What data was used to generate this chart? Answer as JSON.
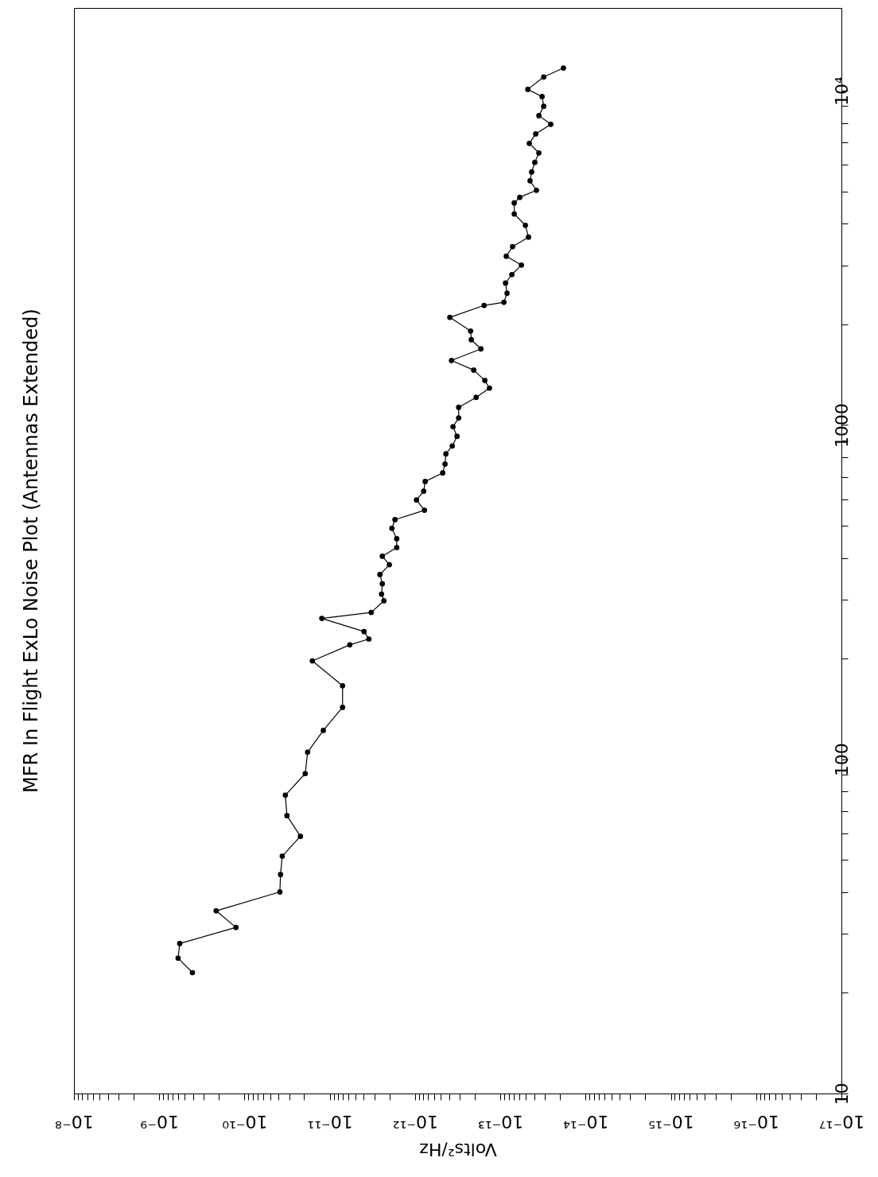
{
  "chart_data": {
    "type": "line",
    "title": "MFR In Flight ExLo Noise Plot (Antennas Extended)",
    "xlabel": "Volts²/Hz",
    "log": "xy",
    "grid": false,
    "marker": "circle",
    "line_style": "solid",
    "xlim": [
      1e-08,
      1e-17
    ],
    "ylim": [
      10,
      17700
    ],
    "xticks": [
      {
        "value": 1e-08,
        "label": "10⁻⁸"
      },
      {
        "value": 1e-09,
        "label": "10⁻⁹"
      },
      {
        "value": 1e-10,
        "label": "10⁻¹⁰"
      },
      {
        "value": 1e-11,
        "label": "10⁻¹¹"
      },
      {
        "value": 1e-12,
        "label": "10⁻¹²"
      },
      {
        "value": 1e-13,
        "label": "10⁻¹³"
      },
      {
        "value": 1e-14,
        "label": "10⁻¹⁴"
      },
      {
        "value": 1e-15,
        "label": "10⁻¹⁵"
      },
      {
        "value": 1e-16,
        "label": "10⁻¹⁶"
      },
      {
        "value": 1e-17,
        "label": "10⁻¹⁷"
      },
      {
        "value": 9e-09,
        "label": null
      },
      {
        "value": 8e-09,
        "label": null
      },
      {
        "value": 7e-09,
        "label": null
      },
      {
        "value": 6e-09,
        "label": null
      },
      {
        "value": 5e-09,
        "label": null
      },
      {
        "value": 4e-09,
        "label": null
      },
      {
        "value": 3e-09,
        "label": null
      },
      {
        "value": 2e-09,
        "label": null
      },
      {
        "value": 9e-10,
        "label": null
      },
      {
        "value": 8e-10,
        "label": null
      },
      {
        "value": 7e-10,
        "label": null
      },
      {
        "value": 6e-10,
        "label": null
      },
      {
        "value": 5e-10,
        "label": null
      },
      {
        "value": 4e-10,
        "label": null
      },
      {
        "value": 3e-10,
        "label": null
      },
      {
        "value": 2e-10,
        "label": null
      },
      {
        "value": 9e-11,
        "label": null
      },
      {
        "value": 8e-11,
        "label": null
      },
      {
        "value": 7e-11,
        "label": null
      },
      {
        "value": 6e-11,
        "label": null
      },
      {
        "value": 5e-11,
        "label": null
      },
      {
        "value": 4e-11,
        "label": null
      },
      {
        "value": 3e-11,
        "label": null
      },
      {
        "value": 2e-11,
        "label": null
      },
      {
        "value": 9e-12,
        "label": null
      },
      {
        "value": 8e-12,
        "label": null
      },
      {
        "value": 7e-12,
        "label": null
      },
      {
        "value": 6e-12,
        "label": null
      },
      {
        "value": 5e-12,
        "label": null
      },
      {
        "value": 4e-12,
        "label": null
      },
      {
        "value": 3e-12,
        "label": null
      },
      {
        "value": 2e-12,
        "label": null
      },
      {
        "value": 9e-13,
        "label": null
      },
      {
        "value": 8e-13,
        "label": null
      },
      {
        "value": 7e-13,
        "label": null
      },
      {
        "value": 6e-13,
        "label": null
      },
      {
        "value": 5e-13,
        "label": null
      },
      {
        "value": 4e-13,
        "label": null
      },
      {
        "value": 3e-13,
        "label": null
      },
      {
        "value": 2e-13,
        "label": null
      },
      {
        "value": 9e-14,
        "label": null
      },
      {
        "value": 8e-14,
        "label": null
      },
      {
        "value": 7e-14,
        "label": null
      },
      {
        "value": 6e-14,
        "label": null
      },
      {
        "value": 5e-14,
        "label": null
      },
      {
        "value": 4e-14,
        "label": null
      },
      {
        "value": 3e-14,
        "label": null
      },
      {
        "value": 2e-14,
        "label": null
      },
      {
        "value": 9e-15,
        "label": null
      },
      {
        "value": 8e-15,
        "label": null
      },
      {
        "value": 7e-15,
        "label": null
      },
      {
        "value": 6e-15,
        "label": null
      },
      {
        "value": 5e-15,
        "label": null
      },
      {
        "value": 4e-15,
        "label": null
      },
      {
        "value": 3e-15,
        "label": null
      },
      {
        "value": 2e-15,
        "label": null
      },
      {
        "value": 9e-16,
        "label": null
      },
      {
        "value": 8e-16,
        "label": null
      },
      {
        "value": 7e-16,
        "label": null
      },
      {
        "value": 6e-16,
        "label": null
      },
      {
        "value": 5e-16,
        "label": null
      },
      {
        "value": 4e-16,
        "label": null
      },
      {
        "value": 3e-16,
        "label": null
      },
      {
        "value": 2e-16,
        "label": null
      },
      {
        "value": 9e-17,
        "label": null
      },
      {
        "value": 8e-17,
        "label": null
      },
      {
        "value": 7e-17,
        "label": null
      },
      {
        "value": 6e-17,
        "label": null
      },
      {
        "value": 5e-17,
        "label": null
      },
      {
        "value": 4e-17,
        "label": null
      },
      {
        "value": 3e-17,
        "label": null
      },
      {
        "value": 2e-17,
        "label": null
      }
    ],
    "yticks": [
      10,
      100,
      1000,
      {
        "value": 10000,
        "label": "10⁴"
      },
      {
        "value": 20,
        "label": null
      },
      {
        "value": 30,
        "label": null
      },
      {
        "value": 40,
        "label": null
      },
      {
        "value": 50,
        "label": null
      },
      {
        "value": 60,
        "label": null
      },
      {
        "value": 70,
        "label": null
      },
      {
        "value": 80,
        "label": null
      },
      {
        "value": 90,
        "label": null
      },
      {
        "value": 200,
        "label": null
      },
      {
        "value": 300,
        "label": null
      },
      {
        "value": 400,
        "label": null
      },
      {
        "value": 500,
        "label": null
      },
      {
        "value": 600,
        "label": null
      },
      {
        "value": 700,
        "label": null
      },
      {
        "value": 800,
        "label": null
      },
      {
        "value": 900,
        "label": null
      },
      {
        "value": 2000,
        "label": null
      },
      {
        "value": 3000,
        "label": null
      },
      {
        "value": 4000,
        "label": null
      },
      {
        "value": 5000,
        "label": null
      },
      {
        "value": 6000,
        "label": null
      },
      {
        "value": 7000,
        "label": null
      },
      {
        "value": 8000,
        "label": null
      },
      {
        "value": 9000,
        "label": null
      }
    ],
    "series": [
      {
        "color": "#000000",
        "x": [
          1.82e-14,
          3.1e-14,
          4.76e-14,
          3.24e-14,
          3.1e-14,
          3.53e-14,
          2.56e-14,
          3.85e-14,
          4.57e-14,
          3.53e-14,
          3.94e-14,
          4.29e-14,
          4.48e-14,
          3.77e-14,
          5.92e-14,
          6.87e-14,
          6.87e-14,
          5.08e-14,
          4.67e-14,
          7.18e-14,
          8.51e-14,
          5.66e-14,
          7.33e-14,
          8.69e-14,
          8.34e-14,
          9.08e-14,
          1.55e-13,
          3.91e-13,
          2.23e-13,
          2.19e-13,
          1.69e-13,
          3.74e-13,
          2.05e-13,
          1.52e-13,
          1.34e-13,
          1.92e-13,
          3.08e-13,
          3.08e-13,
          3.59e-13,
          3.22e-13,
          3.66e-13,
          4.35e-13,
          4.45e-13,
          4.74e-13,
          7.6e-13,
          7.92e-13,
          9.62e-13,
          7.76e-13,
          1.72e-12,
          1.87e-12,
          1.64e-12,
          1.64e-12,
          2.42e-12,
          2e-12,
          2.58e-12,
          2.42e-12,
          2.47e-12,
          2.32e-12,
          3.27e-12,
          1.24e-11,
          3.96e-12,
          3.48e-12,
          5.83e-12,
          1.6e-11,
          7.08e-12,
          7.08e-12,
          1.19e-11,
          1.82e-11,
          1.94e-11,
          3.32e-11,
          3.18e-11,
          2.21e-11,
          3.61e-11,
          3.78e-11,
          3.85e-11,
          2.15e-10,
          1.26e-10,
          5.75e-10,
          6.01e-10,
          4.08e-10
        ],
        "values": [
          11700,
          11000,
          10100,
          9610,
          8990,
          8430,
          7940,
          7430,
          6960,
          6520,
          6110,
          5720,
          5380,
          5040,
          4800,
          4620,
          4280,
          3960,
          3650,
          3420,
          3200,
          3010,
          2820,
          2660,
          2480,
          2330,
          2280,
          2100,
          1910,
          1800,
          1690,
          1560,
          1460,
          1360,
          1290,
          1210,
          1130,
          1050,
          989,
          925,
          866,
          820,
          764,
          719,
          678,
          634,
          597,
          556,
          521,
          491,
          457,
          430,
          405,
          382,
          357,
          335,
          312,
          298,
          275,
          264,
          241,
          229,
          220,
          197,
          166,
          143,
          122,
          105,
          90.6,
          78.1,
          67.8,
          58.8,
          51.3,
          45.2,
          40.1,
          35.2,
          31.4,
          28.1,
          25.4,
          23.0
        ]
      }
    ]
  }
}
